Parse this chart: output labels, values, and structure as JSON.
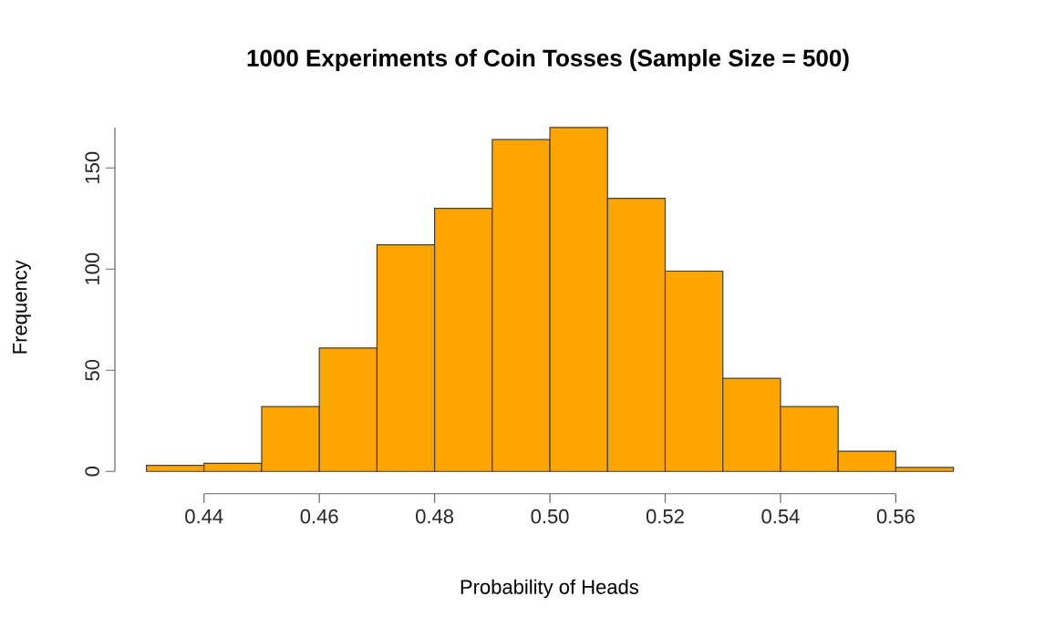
{
  "chart_data": {
    "type": "histogram",
    "title": "1000 Experiments of Coin Tosses (Sample Size = 500)",
    "xlabel": "Probability of Heads",
    "ylabel": "Frequency",
    "bins": [
      0.43,
      0.44,
      0.45,
      0.46,
      0.47,
      0.48,
      0.49,
      0.5,
      0.51,
      0.52,
      0.53,
      0.54,
      0.55,
      0.56,
      0.57
    ],
    "values": [
      3,
      4,
      32,
      61,
      112,
      130,
      164,
      170,
      135,
      99,
      46,
      32,
      10,
      2
    ],
    "color": "#ffa500",
    "xlim": [
      0.44,
      0.56
    ],
    "ylim": [
      0,
      170
    ],
    "xticks": [
      {
        "value": 0.44,
        "label": "0.44"
      },
      {
        "value": 0.46,
        "label": "0.46"
      },
      {
        "value": 0.48,
        "label": "0.48"
      },
      {
        "value": 0.5,
        "label": "0.50"
      },
      {
        "value": 0.52,
        "label": "0.52"
      },
      {
        "value": 0.54,
        "label": "0.54"
      },
      {
        "value": 0.56,
        "label": "0.56"
      }
    ],
    "yticks": [
      0,
      50,
      100,
      150
    ],
    "grid": false
  }
}
